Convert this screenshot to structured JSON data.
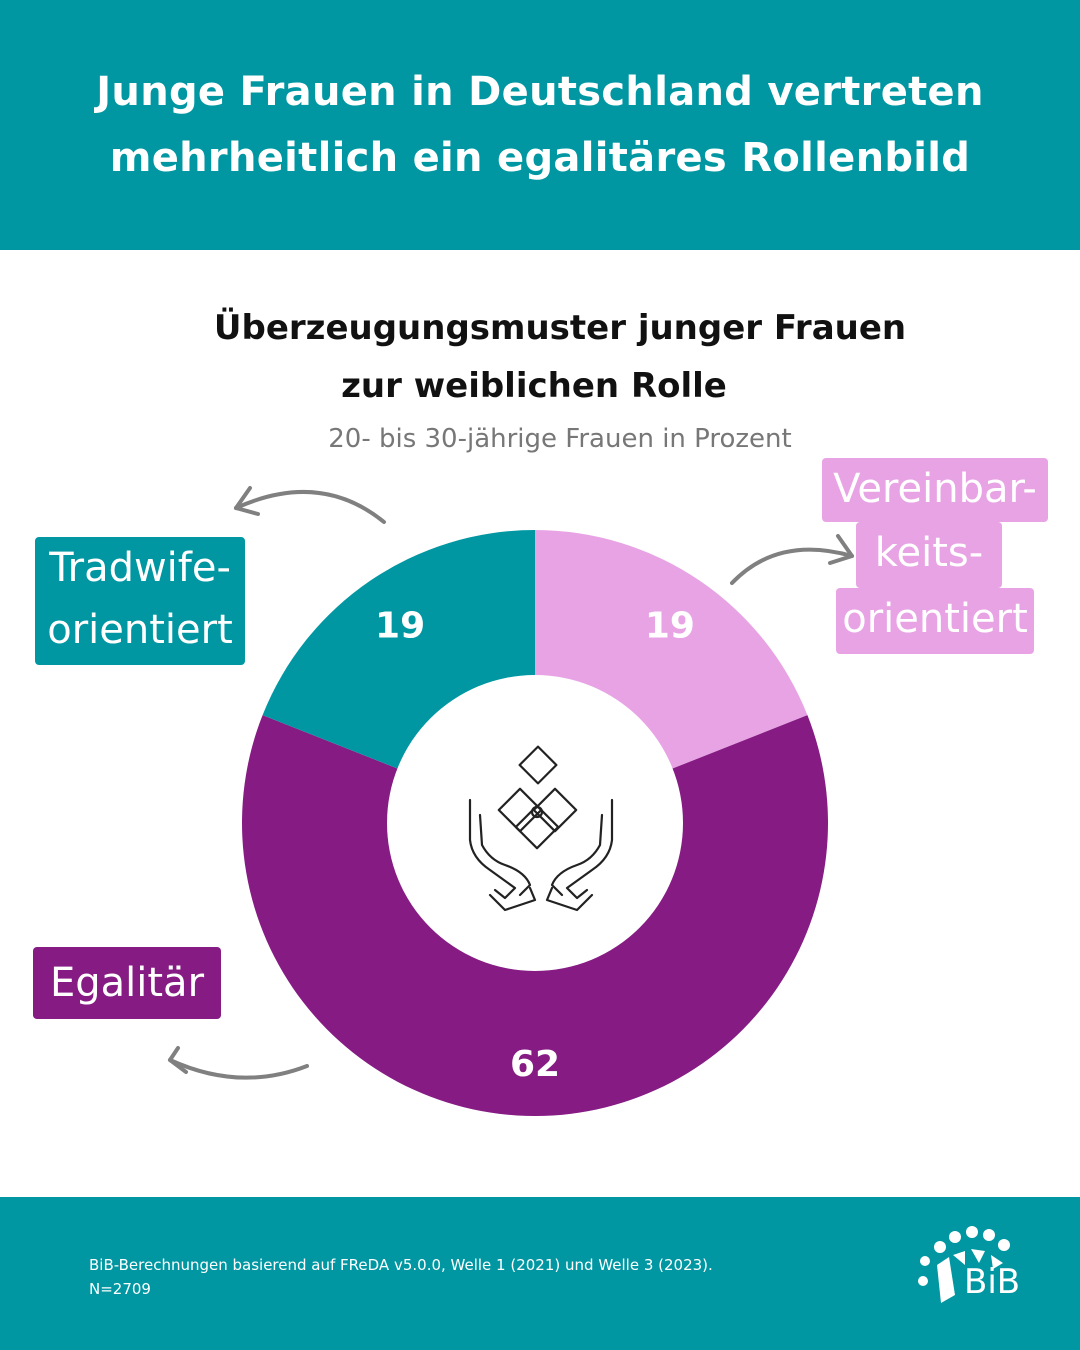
{
  "header": {
    "line1": "Junge Frauen in Deutschland vertreten",
    "line2": "mehrheitlich ein egalitäres Rollenbild"
  },
  "chart": {
    "title_line1": "Überzeugungsmuster junger Frauen",
    "title_line2": "zur weiblichen Rolle",
    "subtitle": "20- bis 30-jährige Frauen in Prozent"
  },
  "labels": {
    "tradwife_line1": "Tradwife-",
    "tradwife_line2": "orientiert",
    "vereinbar_line1": "Vereinbar-",
    "vereinbar_line2": "keits-",
    "vereinbar_line3": "orientiert",
    "egalitaer": "Egalitär"
  },
  "chart_data": {
    "type": "pie",
    "donut": true,
    "title": "Überzeugungsmuster junger Frauen zur weiblichen Rolle",
    "subtitle": "20- bis 30-jährige Frauen in Prozent",
    "categories": [
      "Vereinbarkeitsorientiert",
      "Egalitär",
      "Tradwife-orientiert"
    ],
    "values": [
      19,
      62,
      19
    ],
    "value_labels": [
      "19",
      "62",
      "19"
    ],
    "colors": [
      "#e8a3e4",
      "#851b83",
      "#0097a2"
    ]
  },
  "footer": {
    "source_line1": "BiB-Berechnungen basierend auf FReDA v5.0.0, Welle 1 (2021) und Welle 3 (2023).",
    "source_line2": "N=2709",
    "logo_text": "BiB"
  },
  "icons": {
    "center": "hands-holding-puzzle-icon",
    "arrows": "curved-arrow-icon"
  }
}
